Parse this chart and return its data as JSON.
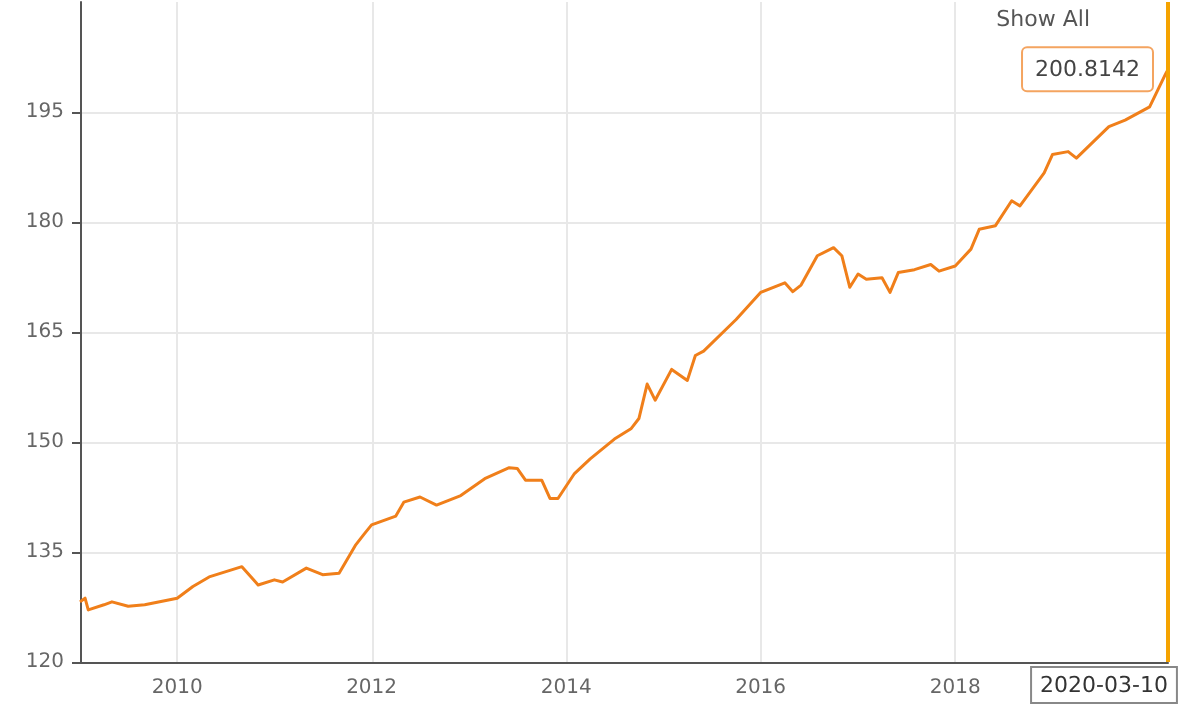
{
  "chart_data": {
    "type": "line",
    "x": [
      "2009-01-01",
      "2009-01-20",
      "2009-02",
      "2009-04",
      "2009-05",
      "2009-07",
      "2009-09",
      "2010-01",
      "2010-03",
      "2010-05",
      "2010-09",
      "2010-11",
      "2011-01",
      "2011-02",
      "2011-05",
      "2011-07",
      "2011-09",
      "2011-11",
      "2011-12",
      "2012-01",
      "2012-04",
      "2012-05",
      "2012-07",
      "2012-09",
      "2012-12",
      "2013-03",
      "2013-06",
      "2013-07",
      "2013-08",
      "2013-10",
      "2013-11",
      "2013-12",
      "2014-02",
      "2014-04",
      "2014-07",
      "2014-09",
      "2014-10",
      "2014-11",
      "2014-12",
      "2015-02",
      "2015-04",
      "2015-05",
      "2015-06",
      "2015-10",
      "2016-01",
      "2016-04",
      "2016-05",
      "2016-06",
      "2016-08",
      "2016-10",
      "2016-11",
      "2016-12",
      "2017-01",
      "2017-02",
      "2017-04",
      "2017-05",
      "2017-06",
      "2017-08",
      "2017-10",
      "2017-11",
      "2018-01",
      "2018-03",
      "2018-04",
      "2018-06",
      "2018-08",
      "2018-09",
      "2018-12",
      "2019-01",
      "2019-03",
      "2019-04",
      "2019-08",
      "2019-10",
      "2020-01",
      "2020-03-01",
      "2020-03-10"
    ],
    "series": [
      {
        "color": "#f07f1a",
        "values": [
          128.2,
          128.7,
          127.1,
          127.8,
          128.2,
          127.6,
          127.8,
          128.7,
          130.3,
          131.6,
          133.0,
          130.5,
          131.2,
          130.9,
          132.8,
          131.9,
          132.1,
          135.9,
          137.3,
          138.7,
          139.9,
          141.8,
          142.5,
          141.4,
          142.7,
          145.0,
          146.5,
          146.4,
          144.8,
          144.8,
          142.3,
          142.3,
          145.7,
          147.7,
          150.4,
          151.8,
          153.2,
          157.9,
          155.7,
          159.9,
          158.4,
          161.8,
          162.4,
          166.7,
          170.4,
          171.7,
          170.5,
          171.4,
          175.4,
          176.5,
          175.4,
          171.1,
          172.9,
          172.2,
          172.4,
          170.4,
          173.1,
          173.5,
          174.2,
          173.3,
          174.0,
          176.3,
          179.0,
          179.5,
          182.9,
          182.2,
          186.7,
          189.2,
          189.6,
          188.7,
          193.0,
          193.9,
          195.7,
          200.2,
          200.8142
        ]
      }
    ],
    "xlim": [
      "2009-01-01",
      "2020-03-10"
    ],
    "xticks": [
      "2010",
      "2012",
      "2014",
      "2016",
      "2018"
    ],
    "ylim": [
      120,
      210
    ],
    "yticks": [
      120,
      135,
      150,
      165,
      180,
      195
    ],
    "grid": true,
    "marker": "none",
    "line_style": "solid",
    "ref_lines": [
      {
        "axis": "x",
        "value": "2020-03-10",
        "label": "2020-03-10",
        "color": "#f5a300"
      }
    ],
    "annotations": [
      "Show All",
      {
        "text": "200.8142",
        "x": "2020-03-10",
        "y": 200.8142
      }
    ]
  }
}
